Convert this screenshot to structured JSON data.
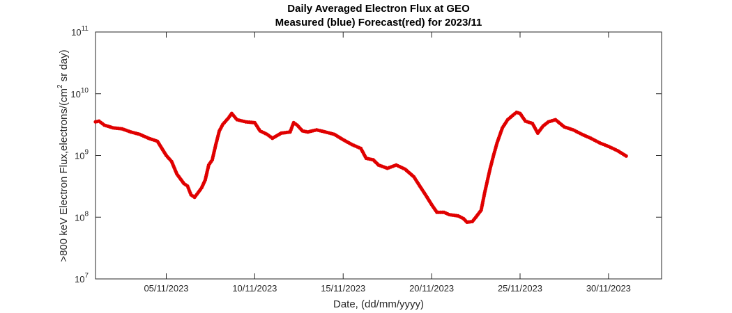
{
  "chart_data": {
    "type": "scatter",
    "title": "Daily Averaged Electron Flux at GEO",
    "subtitle": "Measured (blue) Forecast(red) for 2023/11",
    "xlabel": "Date, (dd/mm/yyyy)",
    "ylabel": ">800 keV Electron Flux,electrons/(cm",
    "ylabel_sup": "2",
    "ylabel_tail": " sr day)",
    "yscale": "log",
    "ylim": [
      10000000,
      100000000000
    ],
    "xlim": [
      1,
      33
    ],
    "grid": false,
    "y_ticks": [
      {
        "value": 10000000,
        "base": "10",
        "exp": "7"
      },
      {
        "value": 100000000,
        "base": "10",
        "exp": "8"
      },
      {
        "value": 1000000000,
        "base": "10",
        "exp": "9"
      },
      {
        "value": 10000000000,
        "base": "10",
        "exp": "10"
      },
      {
        "value": 100000000000,
        "base": "10",
        "exp": "11"
      }
    ],
    "x_ticks": [
      {
        "value": 5,
        "label": "05/11/2023"
      },
      {
        "value": 10,
        "label": "10/11/2023"
      },
      {
        "value": 15,
        "label": "15/11/2023"
      },
      {
        "value": 20,
        "label": "20/11/2023"
      },
      {
        "value": 25,
        "label": "25/11/2023"
      },
      {
        "value": 30,
        "label": "30/11/2023"
      }
    ],
    "series": [
      {
        "color": "#e00000",
        "points": [
          [
            1.0,
            3500000000.0
          ],
          [
            1.2,
            3600000000.0
          ],
          [
            1.5,
            3100000000.0
          ],
          [
            2.0,
            2800000000.0
          ],
          [
            2.5,
            2700000000.0
          ],
          [
            3.0,
            2400000000.0
          ],
          [
            3.5,
            2200000000.0
          ],
          [
            4.0,
            1900000000.0
          ],
          [
            4.5,
            1700000000.0
          ],
          [
            5.0,
            1000000000.0
          ],
          [
            5.3,
            800000000.0
          ],
          [
            5.6,
            500000000.0
          ],
          [
            6.0,
            350000000.0
          ],
          [
            6.2,
            320000000.0
          ],
          [
            6.4,
            230000000.0
          ],
          [
            6.6,
            210000000.0
          ],
          [
            6.8,
            250000000.0
          ],
          [
            7.0,
            300000000.0
          ],
          [
            7.2,
            400000000.0
          ],
          [
            7.4,
            700000000.0
          ],
          [
            7.6,
            850000000.0
          ],
          [
            7.8,
            1500000000.0
          ],
          [
            8.0,
            2500000000.0
          ],
          [
            8.2,
            3200000000.0
          ],
          [
            8.5,
            4000000000.0
          ],
          [
            8.7,
            4800000000.0
          ],
          [
            9.0,
            3800000000.0
          ],
          [
            9.5,
            3500000000.0
          ],
          [
            10.0,
            3400000000.0
          ],
          [
            10.3,
            2500000000.0
          ],
          [
            10.7,
            2200000000.0
          ],
          [
            11.0,
            1900000000.0
          ],
          [
            11.5,
            2300000000.0
          ],
          [
            12.0,
            2400000000.0
          ],
          [
            12.2,
            3400000000.0
          ],
          [
            12.4,
            3100000000.0
          ],
          [
            12.7,
            2500000000.0
          ],
          [
            13.0,
            2400000000.0
          ],
          [
            13.5,
            2600000000.0
          ],
          [
            14.0,
            2400000000.0
          ],
          [
            14.5,
            2200000000.0
          ],
          [
            15.0,
            1800000000.0
          ],
          [
            15.5,
            1500000000.0
          ],
          [
            16.0,
            1300000000.0
          ],
          [
            16.3,
            900000000.0
          ],
          [
            16.7,
            850000000.0
          ],
          [
            17.0,
            700000000.0
          ],
          [
            17.5,
            620000000.0
          ],
          [
            18.0,
            700000000.0
          ],
          [
            18.5,
            600000000.0
          ],
          [
            19.0,
            450000000.0
          ],
          [
            19.3,
            330000000.0
          ],
          [
            19.7,
            220000000.0
          ],
          [
            20.0,
            160000000.0
          ],
          [
            20.3,
            120000000.0
          ],
          [
            20.7,
            120000000.0
          ],
          [
            21.0,
            110000000.0
          ],
          [
            21.5,
            105000000.0
          ],
          [
            21.8,
            95000000.0
          ],
          [
            22.0,
            83000000.0
          ],
          [
            22.3,
            85000000.0
          ],
          [
            22.5,
            100000000.0
          ],
          [
            22.8,
            130000000.0
          ],
          [
            23.0,
            250000000.0
          ],
          [
            23.3,
            600000000.0
          ],
          [
            23.5,
            1000000000.0
          ],
          [
            23.7,
            1600000000.0
          ],
          [
            24.0,
            2800000000.0
          ],
          [
            24.3,
            3800000000.0
          ],
          [
            24.6,
            4500000000.0
          ],
          [
            24.8,
            5000000000.0
          ],
          [
            25.0,
            4800000000.0
          ],
          [
            25.3,
            3600000000.0
          ],
          [
            25.7,
            3300000000.0
          ],
          [
            26.0,
            2300000000.0
          ],
          [
            26.3,
            3000000000.0
          ],
          [
            26.6,
            3500000000.0
          ],
          [
            27.0,
            3800000000.0
          ],
          [
            27.5,
            2900000000.0
          ],
          [
            28.0,
            2600000000.0
          ],
          [
            28.5,
            2200000000.0
          ],
          [
            29.0,
            1900000000.0
          ],
          [
            29.5,
            1600000000.0
          ],
          [
            30.0,
            1400000000.0
          ],
          [
            30.5,
            1200000000.0
          ],
          [
            31.0,
            980000000.0
          ]
        ]
      }
    ]
  }
}
